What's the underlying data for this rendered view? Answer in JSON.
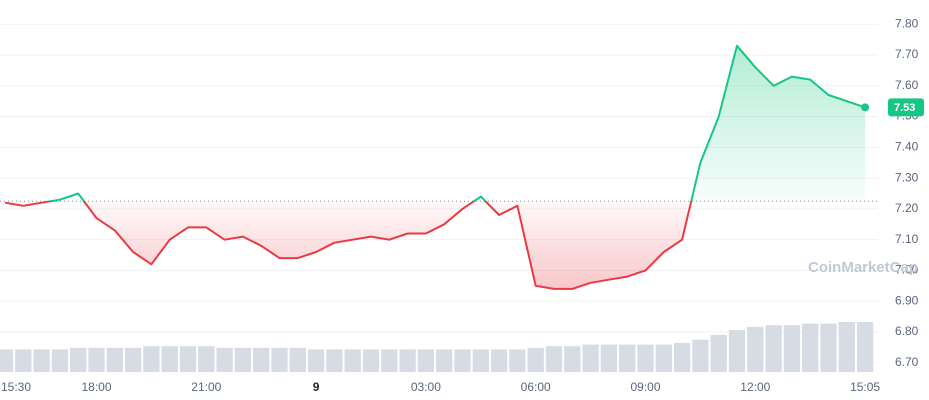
{
  "chart_data": {
    "type": "line",
    "watermark": "CoinMarketCap",
    "categories": [
      "15:30",
      null,
      null,
      null,
      null,
      "18:00",
      null,
      null,
      null,
      null,
      null,
      "21:00",
      null,
      null,
      null,
      null,
      null,
      "9",
      null,
      null,
      null,
      null,
      null,
      "03:00",
      null,
      null,
      null,
      null,
      null,
      "06:00",
      null,
      null,
      null,
      null,
      null,
      "09:00",
      null,
      null,
      null,
      null,
      null,
      "12:00",
      null,
      null,
      null,
      null,
      null,
      "15:05"
    ],
    "series": [
      {
        "values": [
          7.22,
          7.21,
          7.22,
          7.23,
          7.25,
          7.17,
          7.13,
          7.06,
          7.02,
          7.1,
          7.14,
          7.14,
          7.1,
          7.11,
          7.08,
          7.04,
          7.04,
          7.06,
          7.09,
          7.1,
          7.11,
          7.1,
          7.12,
          7.12,
          7.15,
          7.2,
          7.24,
          7.18,
          7.21,
          6.95,
          6.94,
          6.94,
          6.96,
          6.97,
          6.98,
          7.0,
          7.06,
          7.1,
          7.35,
          7.5,
          7.73,
          7.66,
          7.6,
          7.63,
          7.62,
          7.57,
          7.55,
          7.53
        ]
      }
    ],
    "volume": [
      14,
      14,
      14,
      14,
      15,
      15,
      15,
      15,
      16,
      16,
      16,
      16,
      15,
      15,
      15,
      15,
      15,
      14,
      14,
      14,
      14,
      14,
      14,
      14,
      14,
      14,
      14,
      14,
      14,
      15,
      16,
      16,
      17,
      17,
      17,
      17,
      17,
      18,
      20,
      23,
      26,
      28,
      29,
      29,
      30,
      30,
      31,
      31
    ],
    "reference_line": 7.225,
    "up_color": "#16c784",
    "down_color": "#ea3943",
    "ylim": [
      6.67,
      7.83
    ],
    "yticks": [
      {
        "value": 6.7,
        "label": "6.70"
      },
      {
        "value": 6.8,
        "label": "6.80"
      },
      {
        "value": 6.9,
        "label": "6.90"
      },
      {
        "value": 7.0,
        "label": "7.00"
      },
      {
        "value": 7.1,
        "label": "7.10"
      },
      {
        "value": 7.2,
        "label": "7.20"
      },
      {
        "value": 7.3,
        "label": "7.30"
      },
      {
        "value": 7.4,
        "label": "7.40"
      },
      {
        "value": 7.5,
        "label": "7.50"
      },
      {
        "value": 7.6,
        "label": "7.60"
      },
      {
        "value": 7.7,
        "label": "7.70"
      },
      {
        "value": 7.8,
        "label": "7.80"
      }
    ],
    "grid": true
  }
}
